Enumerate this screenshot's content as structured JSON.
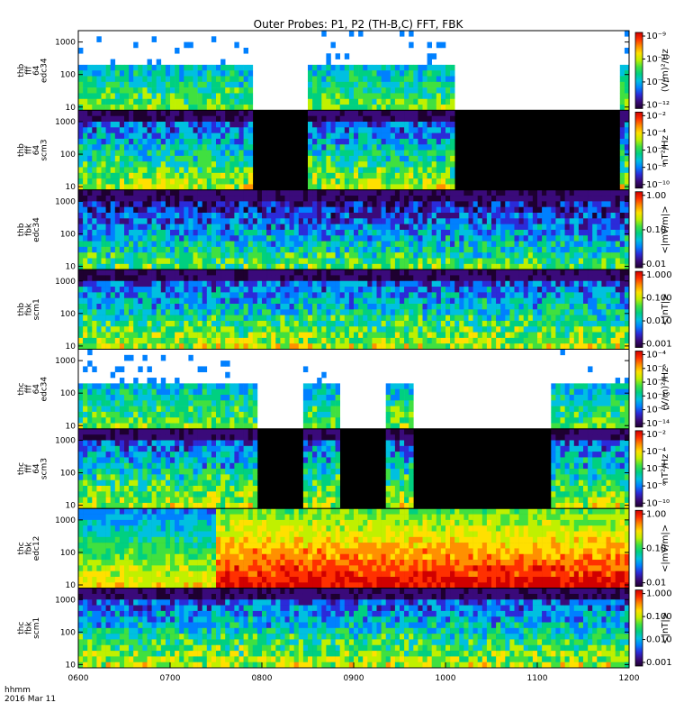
{
  "title": "Outer Probes: P1, P2 (TH-B,C) FFT, FBK",
  "footer": {
    "time_label": "hhmm",
    "date_label": "2016 Mar 11"
  },
  "colors": {
    "palette": [
      "#1e0030",
      "#3a0a7a",
      "#2b2bd9",
      "#0080ff",
      "#00c0e0",
      "#00d080",
      "#40e040",
      "#c0f000",
      "#ffe000",
      "#ff9000",
      "#ff3000",
      "#d00000"
    ],
    "background": "#000000",
    "white": "#ffffff"
  },
  "chart_data": {
    "type": "heatmap",
    "x_axis": {
      "ticks": [
        "0600",
        "0700",
        "0800",
        "0900",
        "1000",
        "1100",
        "1200"
      ],
      "range": [
        "0600",
        "1200"
      ]
    },
    "panels": [
      {
        "label_lines": [
          "thb",
          "fff",
          "64",
          "edc34"
        ],
        "y_ticks": [
          "1000",
          "100",
          "10"
        ],
        "colorbar_ticks": [
          "10⁻⁹",
          "10⁻¹⁰",
          "10⁻¹¹",
          "10⁻¹²"
        ],
        "colorbar_label": "(V/m)²/Hz",
        "gaps": [
          [
            "0755",
            "0830"
          ],
          [
            "1005",
            "1155"
          ]
        ],
        "intensity": "sparse"
      },
      {
        "label_lines": [
          "thb",
          "fff",
          "64",
          "scm3"
        ],
        "y_ticks": [
          "1000",
          "100",
          "10"
        ],
        "colorbar_ticks": [
          "10⁻²",
          "10⁻⁴",
          "10⁻⁶",
          "10⁻⁸",
          "10⁻¹⁰"
        ],
        "colorbar_label": "nT²/Hz",
        "gaps": [
          [
            "0755",
            "0830"
          ],
          [
            "1005",
            "1155"
          ]
        ],
        "intensity": "medium"
      },
      {
        "label_lines": [
          "thb",
          "fbk",
          "edc34"
        ],
        "y_ticks": [
          "1000",
          "100",
          "10"
        ],
        "colorbar_ticks": [
          "1.00",
          "0.10",
          "0.01"
        ],
        "colorbar_label": "<|mV/m|>",
        "gaps": [],
        "intensity": "low"
      },
      {
        "label_lines": [
          "thb",
          "fbk",
          "scm1"
        ],
        "y_ticks": [
          "1000",
          "100",
          "10"
        ],
        "colorbar_ticks": [
          "1.000",
          "0.100",
          "0.010",
          "0.001"
        ],
        "colorbar_label": "<|nT|>",
        "gaps": [],
        "intensity": "medium"
      },
      {
        "label_lines": [
          "thc",
          "fff",
          "64",
          "edc34"
        ],
        "y_ticks": [
          "1000",
          "100",
          "10"
        ],
        "colorbar_ticks": [
          "10⁻⁴",
          "10⁻⁶",
          "10⁻⁸",
          "10⁻¹⁰",
          "10⁻¹²",
          "10⁻¹⁴"
        ],
        "colorbar_label": "(V/m)²/Hz",
        "gaps": [
          [
            "0758",
            "0828"
          ],
          [
            "0852",
            "0922"
          ],
          [
            "0940",
            "1110"
          ]
        ],
        "intensity": "sparse"
      },
      {
        "label_lines": [
          "thc",
          "fff",
          "64",
          "scm3"
        ],
        "y_ticks": [
          "1000",
          "100",
          "10"
        ],
        "colorbar_ticks": [
          "10⁻²",
          "10⁻⁴",
          "10⁻⁶",
          "10⁻⁸",
          "10⁻¹⁰"
        ],
        "colorbar_label": "nT²/Hz",
        "gaps": [
          [
            "0758",
            "0828"
          ],
          [
            "0852",
            "0922"
          ],
          [
            "0940",
            "1110"
          ]
        ],
        "intensity": "medium"
      },
      {
        "label_lines": [
          "thc",
          "fbk",
          "edc12"
        ],
        "y_ticks": [
          "1000",
          "100",
          "10"
        ],
        "colorbar_ticks": [
          "1.00",
          "0.10",
          "0.01"
        ],
        "colorbar_label": "<|mV/m|>",
        "gaps": [],
        "intensity": "high"
      },
      {
        "label_lines": [
          "thc",
          "fbk",
          "scm1"
        ],
        "y_ticks": [
          "1000",
          "100",
          "10"
        ],
        "colorbar_ticks": [
          "1.000",
          "0.100",
          "0.010",
          "0.001"
        ],
        "colorbar_label": "<|nT|>",
        "gaps": [],
        "intensity": "medium"
      }
    ]
  }
}
